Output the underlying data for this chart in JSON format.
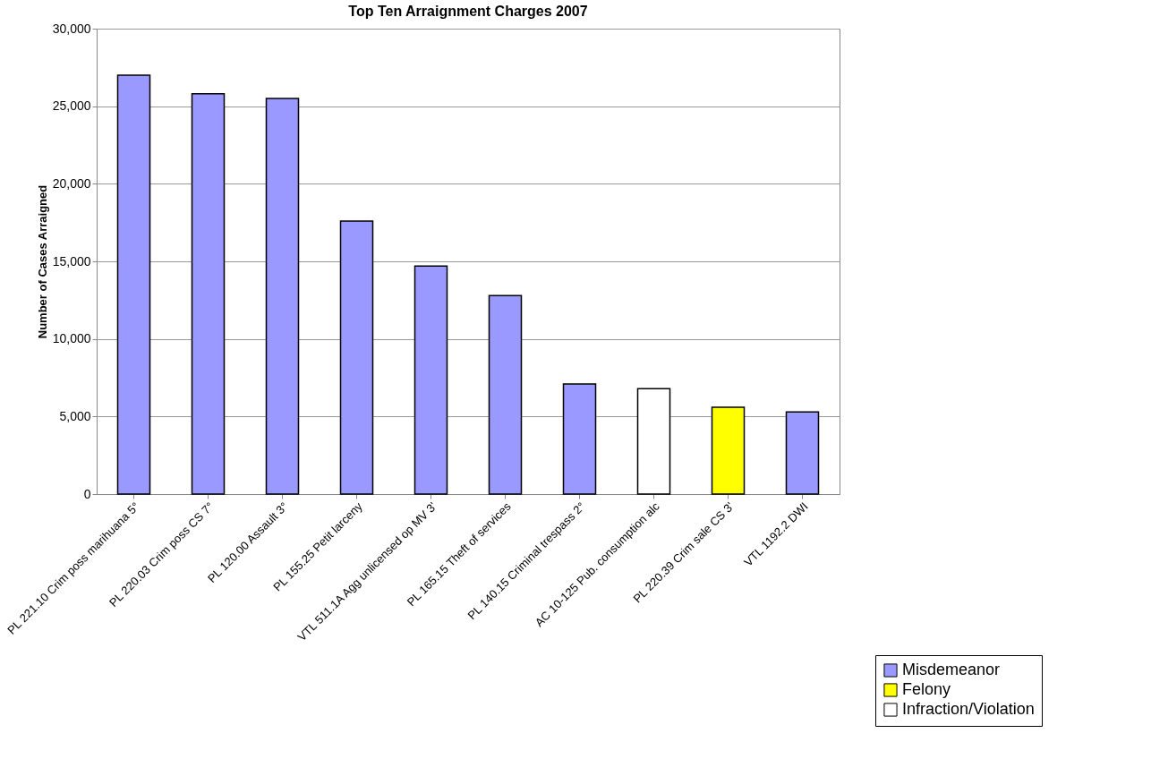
{
  "chart_data": {
    "type": "bar",
    "title": "Top Ten Arraignment Charges 2007",
    "ylabel": "Number of Cases Arraigned",
    "categories": [
      "PL 221.10 Crim poss marihuana 5°",
      "PL 220.03 Crim poss CS 7°",
      "PL 120.00 Assault 3°",
      "PL 155.25 Petit larceny",
      "VTL 511.1A Agg unlicensed op MV 3'",
      "PL 165.15 Theft of services",
      "PL 140.15 Criminal trespass 2°",
      "AC 10-125 Pub. consumption alc",
      "PL 220.39 Crim sale CS 3'",
      "VTL 1192.2 DWI"
    ],
    "series": [
      {
        "name": "Misdemeanor",
        "color": "#9999ff",
        "values": [
          27000,
          25800,
          25500,
          17600,
          14700,
          12800,
          7100,
          null,
          null,
          5300
        ]
      },
      {
        "name": "Felony",
        "color": "#ffff00",
        "values": [
          null,
          null,
          null,
          null,
          null,
          null,
          null,
          null,
          5600,
          null
        ]
      },
      {
        "name": "Infraction/Violation",
        "color": "#ffffff",
        "values": [
          null,
          null,
          null,
          null,
          null,
          null,
          null,
          6800,
          null,
          null
        ]
      }
    ],
    "ylim": [
      0,
      30000
    ],
    "yticks": [
      0,
      {
        "value": 5000,
        "label": "5,000"
      },
      {
        "value": 10000,
        "label": "10,000"
      },
      {
        "value": 15000,
        "label": "15,000"
      },
      {
        "value": 20000,
        "label": "20,000"
      },
      {
        "value": 25000,
        "label": "25,000"
      },
      {
        "value": 30000,
        "label": "30,000"
      }
    ],
    "grid": "y",
    "legend": "bottom right"
  }
}
